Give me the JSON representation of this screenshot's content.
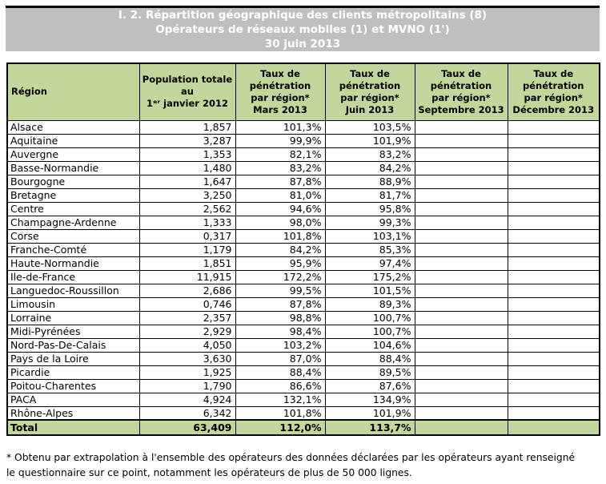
{
  "title": {
    "line1": "I. 2. Répartition géographique des clients métropolitains (8)",
    "line2": "Opérateurs de réseaux mobiles (1) et MVNO (1')",
    "line3": "30 juin 2013"
  },
  "colors": {
    "header_green": "#c3d69b",
    "title_gray": "#bfbfbf",
    "title_text": "#ffffff",
    "border": "#000000"
  },
  "table": {
    "columns": [
      {
        "id": "region",
        "align": "left",
        "lines": [
          "Région"
        ]
      },
      {
        "id": "population",
        "align": "center",
        "lines": [
          "Population totale",
          "au",
          "1ᵉʳ janvier 2012"
        ]
      },
      {
        "id": "mars",
        "align": "center",
        "lines": [
          "Taux de",
          "pénétration",
          "par région*",
          "Mars 2013"
        ]
      },
      {
        "id": "juin",
        "align": "center",
        "lines": [
          "Taux de",
          "pénétration",
          "par région*",
          "Juin 2013"
        ]
      },
      {
        "id": "septembre",
        "align": "center",
        "lines": [
          "Taux de",
          "pénétration",
          "par région*",
          "Septembre 2013"
        ]
      },
      {
        "id": "decembre",
        "align": "center",
        "lines": [
          "Taux de",
          "pénétration",
          "par région*",
          "Décembre 2013"
        ]
      }
    ],
    "rows": [
      {
        "region": "Alsace",
        "population": "1,857",
        "mars": "101,3%",
        "juin": "103,5%",
        "septembre": "",
        "decembre": ""
      },
      {
        "region": "Aquitaine",
        "population": "3,287",
        "mars": "99,9%",
        "juin": "101,9%",
        "septembre": "",
        "decembre": ""
      },
      {
        "region": "Auvergne",
        "population": "1,353",
        "mars": "82,1%",
        "juin": "83,2%",
        "septembre": "",
        "decembre": ""
      },
      {
        "region": "Basse-Normandie",
        "population": "1,480",
        "mars": "83,2%",
        "juin": "84,2%",
        "septembre": "",
        "decembre": ""
      },
      {
        "region": "Bourgogne",
        "population": "1,647",
        "mars": "87,8%",
        "juin": "88,9%",
        "septembre": "",
        "decembre": ""
      },
      {
        "region": "Bretagne",
        "population": "3,250",
        "mars": "81,0%",
        "juin": "81,7%",
        "septembre": "",
        "decembre": ""
      },
      {
        "region": "Centre",
        "population": "2,562",
        "mars": "94,6%",
        "juin": "95,8%",
        "septembre": "",
        "decembre": ""
      },
      {
        "region": "Champagne-Ardenne",
        "population": "1,333",
        "mars": "98,0%",
        "juin": "99,3%",
        "septembre": "",
        "decembre": ""
      },
      {
        "region": "Corse",
        "population": "0,317",
        "mars": "101,8%",
        "juin": "103,1%",
        "septembre": "",
        "decembre": ""
      },
      {
        "region": "Franche-Comté",
        "population": "1,179",
        "mars": "84,2%",
        "juin": "85,3%",
        "septembre": "",
        "decembre": ""
      },
      {
        "region": "Haute-Normandie",
        "population": "1,851",
        "mars": "95,9%",
        "juin": "97,4%",
        "septembre": "",
        "decembre": ""
      },
      {
        "region": "Ile-de-France",
        "population": "11,915",
        "mars": "172,2%",
        "juin": "175,2%",
        "septembre": "",
        "decembre": ""
      },
      {
        "region": "Languedoc-Roussillon",
        "population": "2,686",
        "mars": "99,5%",
        "juin": "101,5%",
        "septembre": "",
        "decembre": ""
      },
      {
        "region": "Limousin",
        "population": "0,746",
        "mars": "87,8%",
        "juin": "89,3%",
        "septembre": "",
        "decembre": ""
      },
      {
        "region": "Lorraine",
        "population": "2,357",
        "mars": "98,8%",
        "juin": "100,7%",
        "septembre": "",
        "decembre": ""
      },
      {
        "region": "Midi-Pyrénées",
        "population": "2,929",
        "mars": "98,4%",
        "juin": "100,7%",
        "septembre": "",
        "decembre": ""
      },
      {
        "region": "Nord-Pas-De-Calais",
        "population": "4,050",
        "mars": "103,2%",
        "juin": "104,6%",
        "septembre": "",
        "decembre": ""
      },
      {
        "region": "Pays de la Loire",
        "population": "3,630",
        "mars": "87,0%",
        "juin": "88,4%",
        "septembre": "",
        "decembre": ""
      },
      {
        "region": "Picardie",
        "population": "1,925",
        "mars": "88,4%",
        "juin": "89,5%",
        "septembre": "",
        "decembre": ""
      },
      {
        "region": "Poitou-Charentes",
        "population": "1,790",
        "mars": "86,6%",
        "juin": "87,6%",
        "septembre": "",
        "decembre": ""
      },
      {
        "region": "PACA",
        "population": "4,924",
        "mars": "132,1%",
        "juin": "134,9%",
        "septembre": "",
        "decembre": ""
      },
      {
        "region": "Rhône-Alpes",
        "population": "6,342",
        "mars": "101,8%",
        "juin": "101,9%",
        "septembre": "",
        "decembre": ""
      }
    ],
    "total": {
      "region": "Total",
      "population": "63,409",
      "mars": "112,0%",
      "juin": "113,7%",
      "septembre": "",
      "decembre": ""
    }
  },
  "footnote": {
    "line1": "* Obtenu par extrapolation à l'ensemble des opérateurs des données déclarées par les opérateurs ayant renseigné",
    "line2": "le questionnaire sur ce point, notamment les opérateurs de plus de 50 000 lignes."
  }
}
